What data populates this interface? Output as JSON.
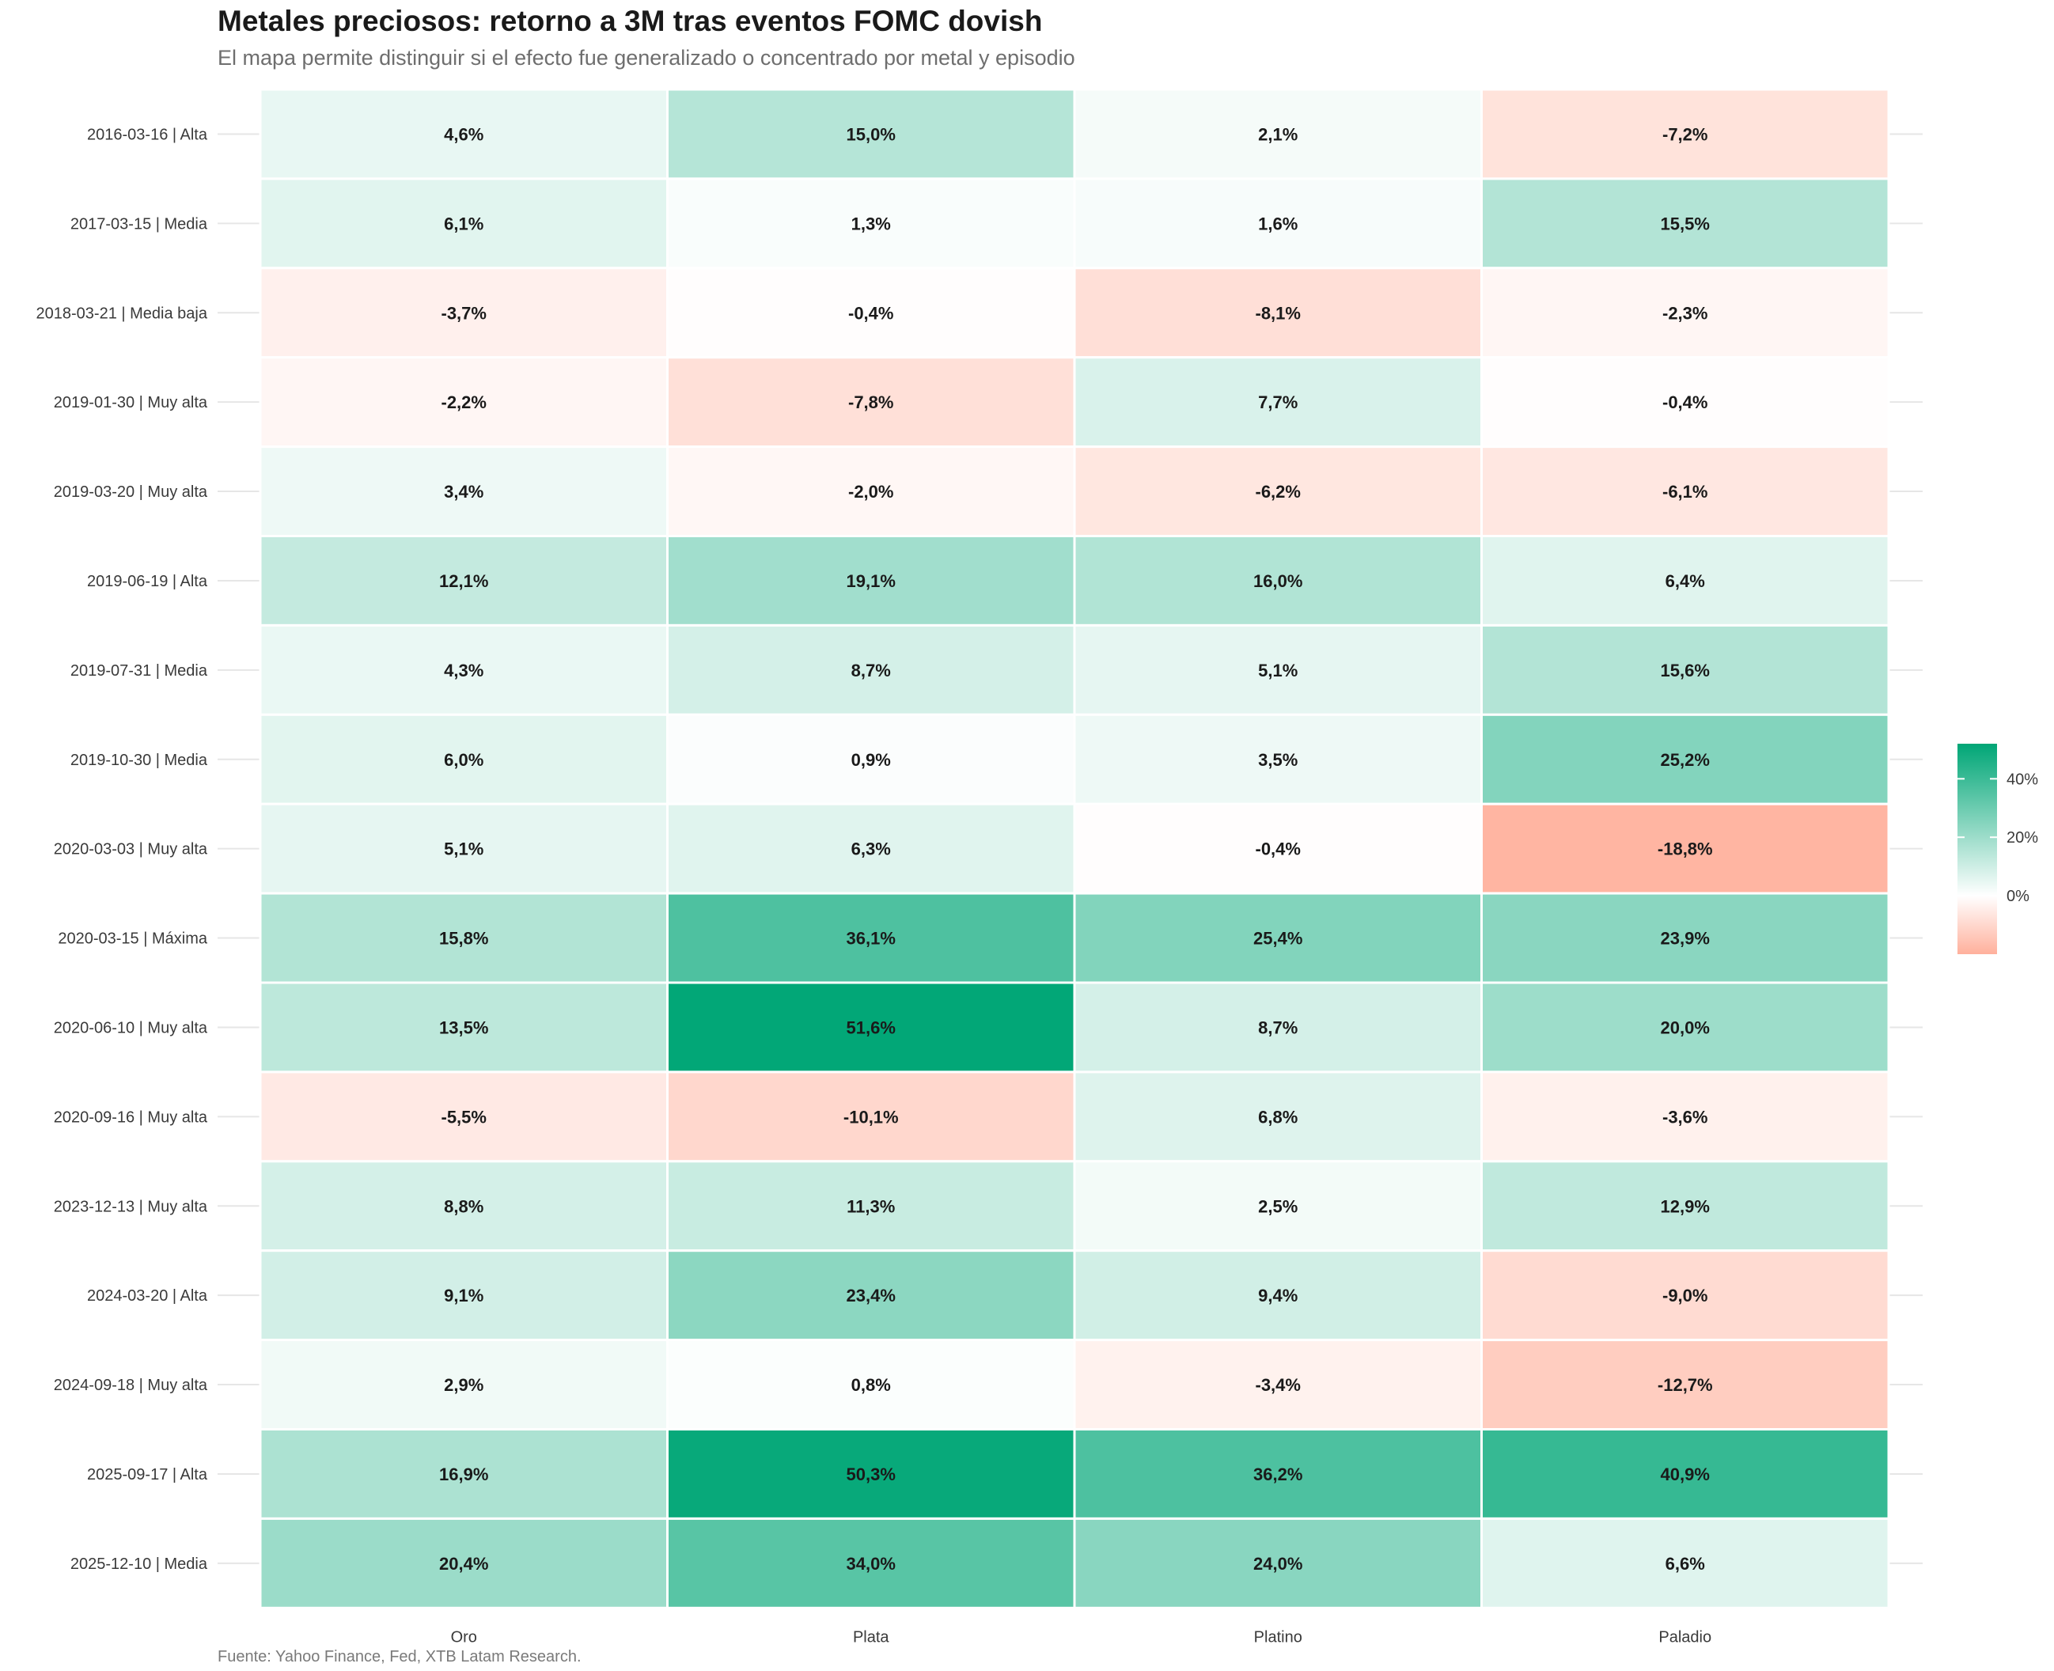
{
  "chart_data": {
    "type": "heatmap",
    "title": "Metales preciosos: retorno a 3M tras eventos FOMC dovish",
    "subtitle": "El mapa permite distinguir si el efecto fue generalizado o concentrado por metal y episodio",
    "caption": "Fuente: Yahoo Finance, Fed, XTB Latam Research.",
    "x_categories": [
      "Oro",
      "Plata",
      "Platino",
      "Paladio"
    ],
    "y_categories": [
      "2016-03-16 | Alta",
      "2017-03-15 | Media",
      "2018-03-21 | Media baja",
      "2019-01-30 | Muy alta",
      "2019-03-20 | Muy alta",
      "2019-06-19 | Alta",
      "2019-07-31 | Media",
      "2019-10-30 | Media",
      "2020-03-03 | Muy alta",
      "2020-03-15 | Máxima",
      "2020-06-10 | Muy alta",
      "2020-09-16 | Muy alta",
      "2023-12-13 | Muy alta",
      "2024-03-20 | Alta",
      "2024-09-18 | Muy alta",
      "2025-09-17 | Alta",
      "2025-12-10 | Media"
    ],
    "values": [
      [
        4.6,
        15.0,
        2.1,
        -7.2
      ],
      [
        6.1,
        1.3,
        1.6,
        15.5
      ],
      [
        -3.7,
        -0.4,
        -8.1,
        -2.3
      ],
      [
        -2.2,
        -7.8,
        7.7,
        -0.4
      ],
      [
        3.4,
        -2.0,
        -6.2,
        -6.1
      ],
      [
        12.1,
        19.1,
        16.0,
        6.4
      ],
      [
        4.3,
        8.7,
        5.1,
        15.6
      ],
      [
        6.0,
        0.9,
        3.5,
        25.2
      ],
      [
        5.1,
        6.3,
        -0.4,
        -18.8
      ],
      [
        15.8,
        36.1,
        25.4,
        23.9
      ],
      [
        13.5,
        51.6,
        8.7,
        20.0
      ],
      [
        -5.5,
        -10.1,
        6.8,
        -3.6
      ],
      [
        8.8,
        11.3,
        2.5,
        12.9
      ],
      [
        9.1,
        23.4,
        9.4,
        -9.0
      ],
      [
        2.9,
        0.8,
        -3.4,
        -12.7
      ],
      [
        16.9,
        50.3,
        36.2,
        40.9
      ],
      [
        20.4,
        34.0,
        24.0,
        6.6
      ]
    ],
    "labels": [
      [
        "4,6%",
        "15,0%",
        "2,1%",
        "-7,2%"
      ],
      [
        "6,1%",
        "1,3%",
        "1,6%",
        "15,5%"
      ],
      [
        "-3,7%",
        "-0,4%",
        "-8,1%",
        "-2,3%"
      ],
      [
        "-2,2%",
        "-7,8%",
        "7,7%",
        "-0,4%"
      ],
      [
        "3,4%",
        "-2,0%",
        "-6,2%",
        "-6,1%"
      ],
      [
        "12,1%",
        "19,1%",
        "16,0%",
        "6,4%"
      ],
      [
        "4,3%",
        "8,7%",
        "5,1%",
        "15,6%"
      ],
      [
        "6,0%",
        "0,9%",
        "3,5%",
        "25,2%"
      ],
      [
        "5,1%",
        "6,3%",
        "-0,4%",
        "-18,8%"
      ],
      [
        "15,8%",
        "36,1%",
        "25,4%",
        "23,9%"
      ],
      [
        "13,5%",
        "51,6%",
        "8,7%",
        "20,0%"
      ],
      [
        "-5,5%",
        "-10,1%",
        "6,8%",
        "-3,6%"
      ],
      [
        "8,8%",
        "11,3%",
        "2,5%",
        "12,9%"
      ],
      [
        "9,1%",
        "23,4%",
        "9,4%",
        "-9,0%"
      ],
      [
        "2,9%",
        "0,8%",
        "-3,4%",
        "-12,7%"
      ],
      [
        "16,9%",
        "50,3%",
        "36,2%",
        "40,9%"
      ],
      [
        "20,4%",
        "34,0%",
        "24,0%",
        "6,6%"
      ]
    ],
    "color_scale": {
      "low": "#ffb09c",
      "mid": "#ffffff",
      "high": "#00a676",
      "limits": [
        -20,
        52
      ],
      "midpoint": 0
    },
    "legend": {
      "position": "right",
      "ticks": [
        0,
        20,
        40
      ],
      "tick_labels": [
        "0%",
        "20%",
        "40%"
      ]
    },
    "grid": true
  }
}
